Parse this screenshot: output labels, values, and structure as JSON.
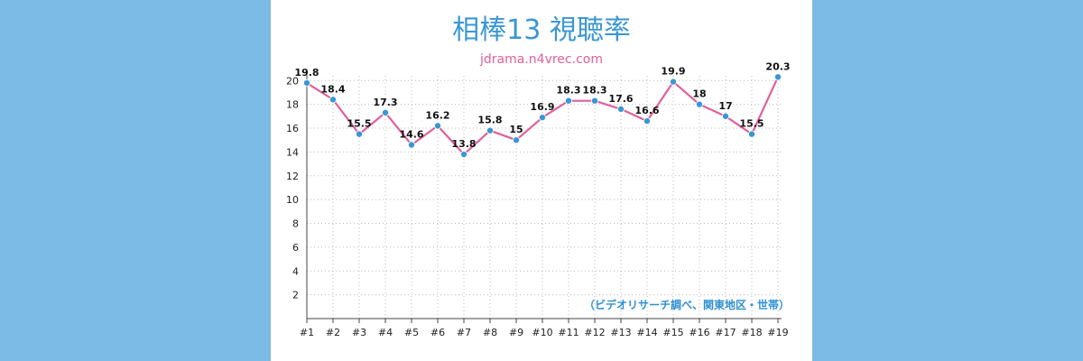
{
  "chart_data": {
    "type": "line",
    "title": "相棒13 視聴率",
    "subtitle": "jdrama.n4vrec.com",
    "note": "（ビデオリサーチ調べ、関東地区・世帯）",
    "categories": [
      "#1",
      "#2",
      "#3",
      "#4",
      "#5",
      "#6",
      "#7",
      "#8",
      "#9",
      "#10",
      "#11",
      "#12",
      "#13",
      "#14",
      "#15",
      "#16",
      "#17",
      "#18",
      "#19"
    ],
    "values": [
      19.8,
      18.4,
      15.5,
      17.3,
      14.6,
      16.2,
      13.8,
      15.8,
      15,
      16.9,
      18.3,
      18.3,
      17.6,
      16.6,
      19.9,
      18,
      17,
      15.5,
      20.3
    ],
    "value_labels": [
      "19.8",
      "18.4",
      "15.5",
      "17.3",
      "14.6",
      "16.2",
      "13.8",
      "15.8",
      "15",
      "16.9",
      "18.3",
      "18.3",
      "17.6",
      "16.6",
      "19.9",
      "18",
      "17",
      "15.5",
      "20.3"
    ],
    "y_ticks": [
      "2",
      "4",
      "6",
      "8",
      "10",
      "12",
      "14",
      "16",
      "18",
      "20"
    ],
    "ylim": [
      0,
      20.4
    ],
    "grid": true,
    "colors": {
      "line": "#e0609a",
      "marker": "#3a97d3",
      "background": "#7bbbe6",
      "title": "#3a97d3",
      "subtitle": "#e0609a",
      "note": "#2f8fd0"
    }
  }
}
